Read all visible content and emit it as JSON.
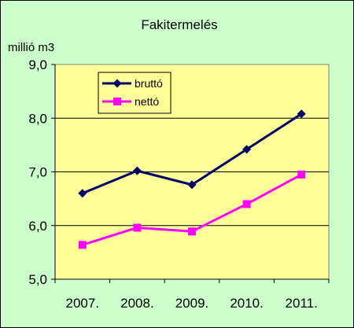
{
  "chart_data": {
    "type": "line",
    "title": "Fakitermelés",
    "ylabel": "millió m3",
    "xlabel": "",
    "categories": [
      "2007.",
      "2008.",
      "2009.",
      "2010.",
      "2011."
    ],
    "ylim": [
      5.0,
      9.0
    ],
    "yticks": [
      "5,0",
      "6,0",
      "7,0",
      "8,0",
      "9,0"
    ],
    "grid": true,
    "legend_position": "top-left",
    "plot_background": "#ffff99",
    "chart_background": "#ccffcc",
    "series": [
      {
        "name": "bruttó",
        "values": [
          6.6,
          7.02,
          6.76,
          7.42,
          8.08
        ],
        "color": "#000066",
        "marker": "diamond"
      },
      {
        "name": "nettó",
        "values": [
          5.64,
          5.96,
          5.89,
          6.4,
          6.95
        ],
        "color": "#ff00ff",
        "marker": "square"
      }
    ]
  }
}
